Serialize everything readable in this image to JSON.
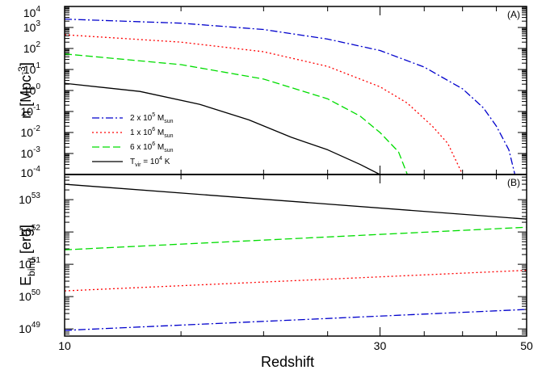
{
  "chart_data": [
    {
      "panel": "A",
      "panel_label": "(A)",
      "type": "line",
      "ylabel": "n [Mpc",
      "ylabel_exp": "-3",
      "ylabel_close": "]",
      "yscale": "log",
      "ylim": [
        0.0001,
        10000
      ],
      "xscale": "log",
      "xlim": [
        10,
        50
      ],
      "y_ticks": [
        {
          "base": "10",
          "exp": "-4"
        },
        {
          "base": "10",
          "exp": "-3"
        },
        {
          "base": "10",
          "exp": "-2"
        },
        {
          "base": "10",
          "exp": "-1"
        },
        {
          "base": "10",
          "exp": "0"
        },
        {
          "base": "10",
          "exp": "1"
        },
        {
          "base": "10",
          "exp": "2"
        },
        {
          "base": "10",
          "exp": "3"
        },
        {
          "base": "10",
          "exp": "4"
        }
      ],
      "legend_position": "lower-left",
      "series": [
        {
          "name": "2 x 10^5 M_sun",
          "label_parts": [
            "2 x 10",
            "5",
            " M",
            "sun"
          ],
          "color": "#0000cc",
          "dash": "dashdot",
          "points": [
            [
              10,
              2500
            ],
            [
              15,
              1600
            ],
            [
              20,
              800
            ],
            [
              25,
              280
            ],
            [
              30,
              80
            ],
            [
              35,
              13
            ],
            [
              40,
              1.2
            ],
            [
              43,
              0.15
            ],
            [
              45,
              0.02
            ],
            [
              47,
              0.0015
            ],
            [
              48,
              0.0001
            ]
          ]
        },
        {
          "name": "1 x 10^6 M_sun",
          "label_parts": [
            "1 x 10",
            "6",
            " M",
            "sun"
          ],
          "color": "#ff0000",
          "dash": "dotted",
          "points": [
            [
              10,
              450
            ],
            [
              15,
              200
            ],
            [
              20,
              70
            ],
            [
              25,
              14
            ],
            [
              30,
              1.5
            ],
            [
              33,
              0.25
            ],
            [
              36,
              0.02
            ],
            [
              38,
              0.003
            ],
            [
              40,
              0.0001
            ]
          ]
        },
        {
          "name": "6 x 10^6 M_sun",
          "label_parts": [
            "6 x 10",
            "6",
            " M",
            "sun"
          ],
          "color": "#00dd00",
          "dash": "dashed",
          "points": [
            [
              10,
              55
            ],
            [
              15,
              17
            ],
            [
              20,
              3.5
            ],
            [
              25,
              0.4
            ],
            [
              28,
              0.06
            ],
            [
              30,
              0.01
            ],
            [
              32,
              0.0012
            ],
            [
              33,
              0.0001
            ]
          ]
        },
        {
          "name": "T_vir = 10^4 K",
          "label_parts": [
            "T",
            "vir",
            " = 10",
            "4",
            " K"
          ],
          "color": "#000000",
          "dash": "solid",
          "points": [
            [
              10,
              2.2
            ],
            [
              13,
              0.9
            ],
            [
              16,
              0.22
            ],
            [
              19,
              0.04
            ],
            [
              22,
              0.006
            ],
            [
              25,
              0.0015
            ],
            [
              28,
              0.0003
            ],
            [
              30,
              0.0001
            ]
          ]
        }
      ]
    },
    {
      "panel": "B",
      "panel_label": "(B)",
      "type": "line",
      "ylabel": "E",
      "ylabel_sub": "bind",
      "ylabel_rest": " [erg]",
      "yscale": "log",
      "ylim": [
        6e+48,
        6e+53
      ],
      "xscale": "log",
      "xlim": [
        10,
        50
      ],
      "xlabel": "Redshift",
      "x_ticks": [
        "10",
        "30",
        "50"
      ],
      "y_ticks": [
        {
          "base": "10",
          "exp": "49"
        },
        {
          "base": "10",
          "exp": "50"
        },
        {
          "base": "10",
          "exp": "51"
        },
        {
          "base": "10",
          "exp": "52"
        },
        {
          "base": "10",
          "exp": "53"
        }
      ],
      "series": [
        {
          "name": "T_vir = 10^4 K",
          "color": "#000000",
          "dash": "solid",
          "points": [
            [
              10,
              3e+53
            ],
            [
              50,
              2.5e+52
            ]
          ]
        },
        {
          "name": "6 x 10^6 M_sun",
          "color": "#00dd00",
          "dash": "dashed",
          "points": [
            [
              10,
              2.8e+51
            ],
            [
              50,
              1.4e+52
            ]
          ]
        },
        {
          "name": "1 x 10^6 M_sun",
          "color": "#ff0000",
          "dash": "dotted",
          "points": [
            [
              10,
              1.5e+50
            ],
            [
              50,
              6.5e+50
            ]
          ]
        },
        {
          "name": "2 x 10^5 M_sun",
          "color": "#0000cc",
          "dash": "dashdot",
          "points": [
            [
              10,
              9e+48
            ],
            [
              50,
              4e+49
            ]
          ]
        }
      ]
    }
  ]
}
